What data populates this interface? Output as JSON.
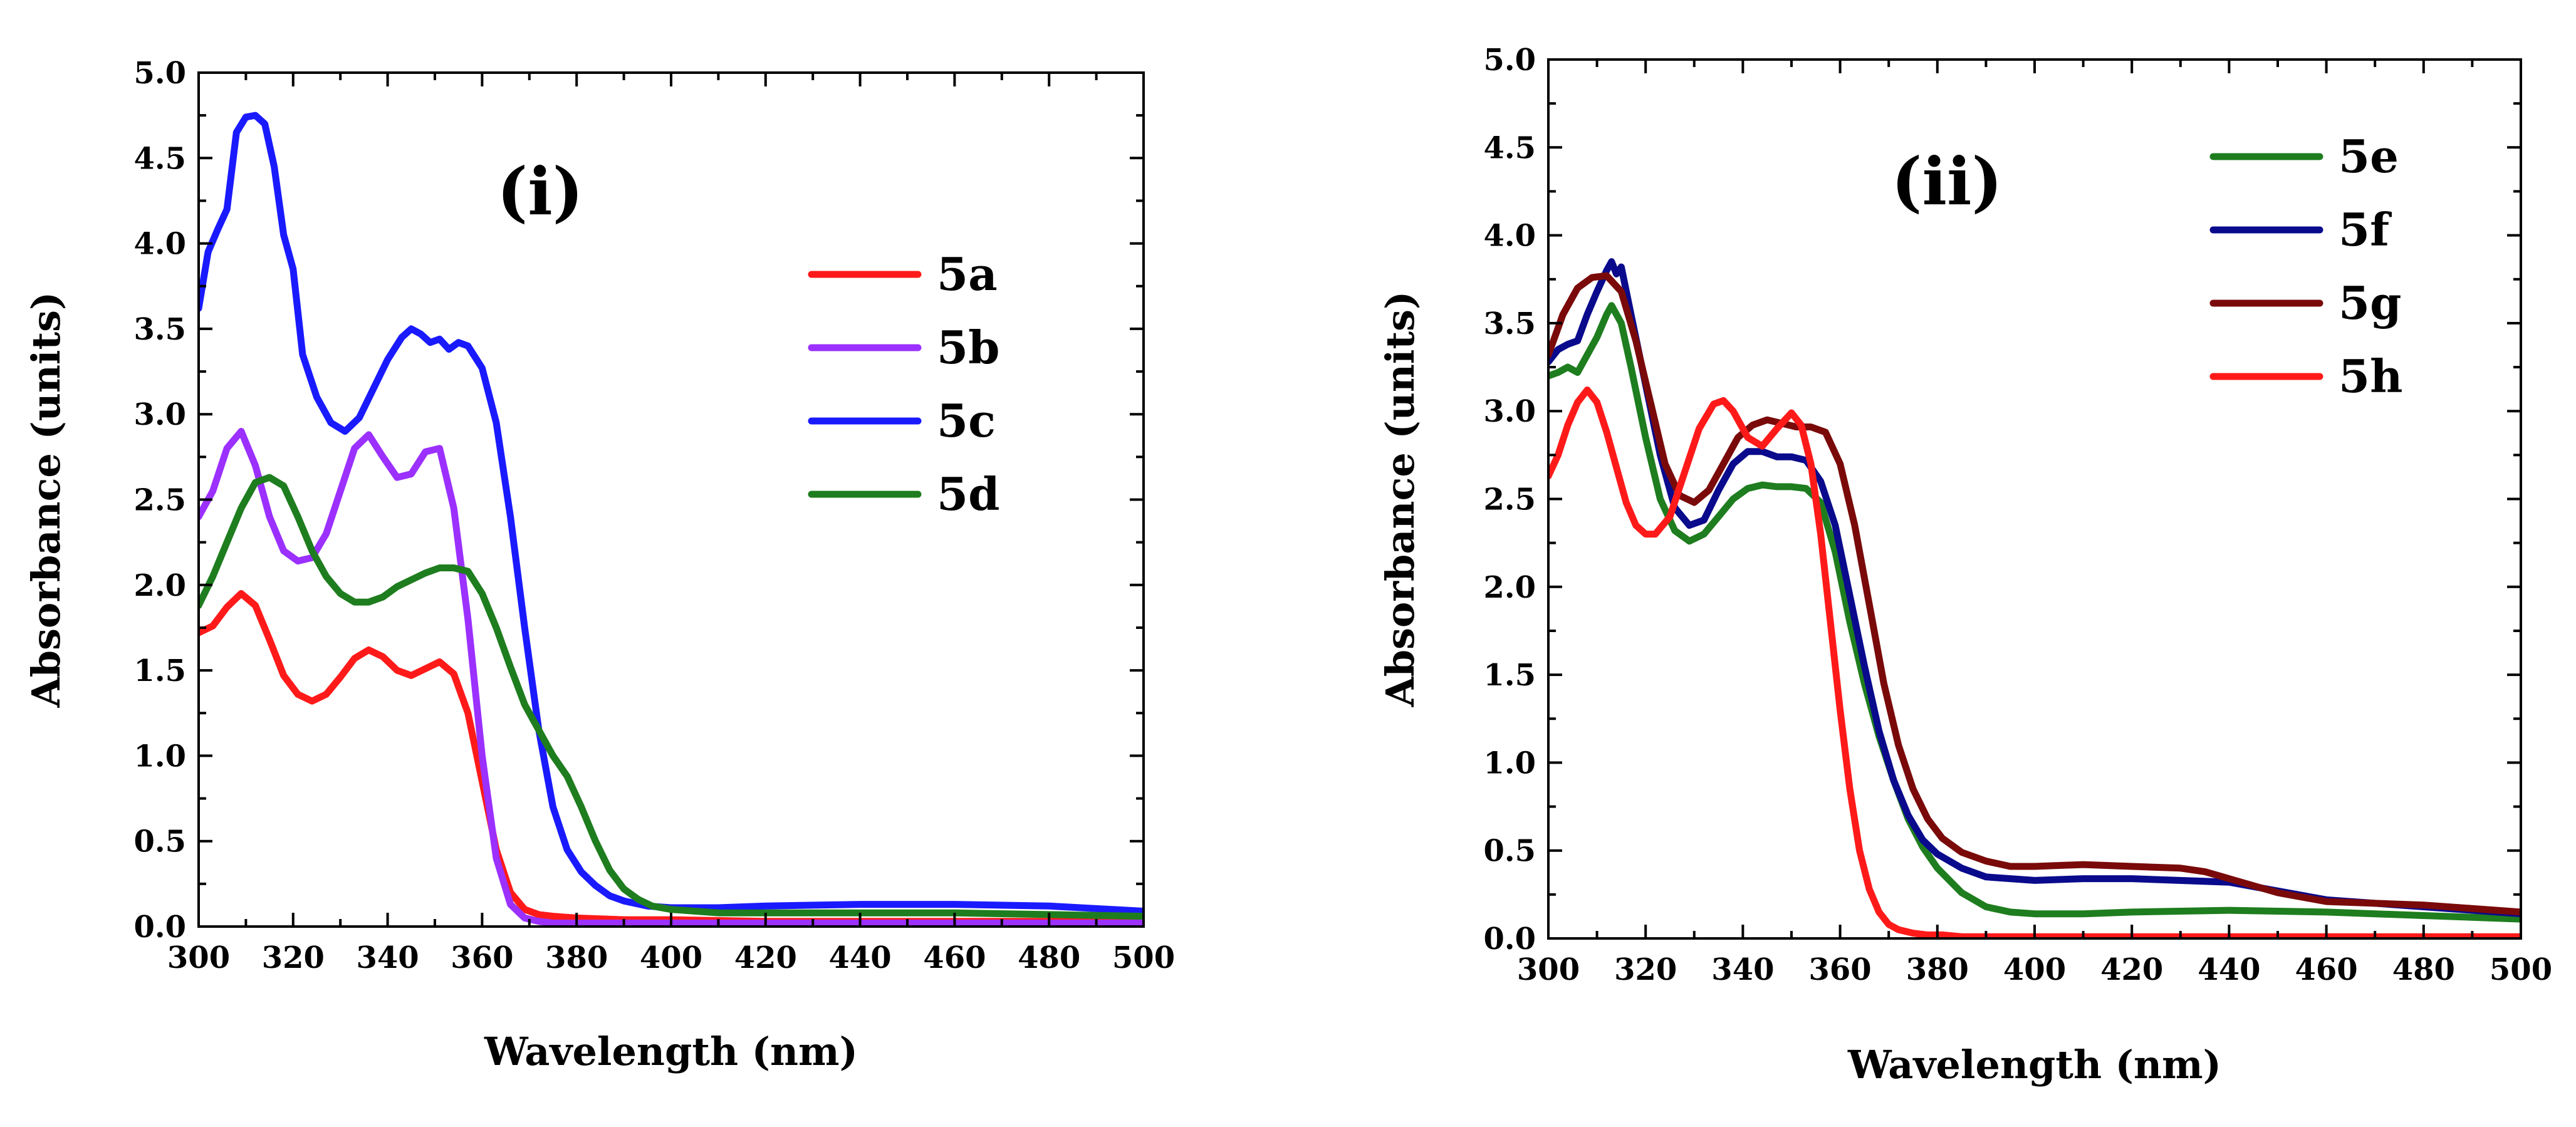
{
  "chart_data": [
    {
      "type": "line",
      "panel_label": "(i)",
      "xlabel": "Wavelength (nm)",
      "ylabel": "Absorbance (units)",
      "xlim": [
        300,
        500
      ],
      "ylim": [
        0.0,
        5.0
      ],
      "xticks": [
        "300",
        "320",
        "340",
        "360",
        "380",
        "400",
        "420",
        "440",
        "460",
        "480",
        "500"
      ],
      "yticks": [
        "0.0",
        "0.5",
        "1.0",
        "1.5",
        "2.0",
        "2.5",
        "3.0",
        "3.5",
        "4.0",
        "4.5",
        "5.0"
      ],
      "legend_position": "top-right",
      "series": [
        {
          "name": "5a",
          "color": "#ff1a1a",
          "x": [
            300,
            303,
            306,
            309,
            312,
            315,
            318,
            321,
            324,
            327,
            330,
            333,
            336,
            339,
            342,
            345,
            348,
            351,
            354,
            357,
            360,
            363,
            366,
            369,
            372,
            375,
            380,
            390,
            400,
            420,
            440,
            460,
            480,
            500
          ],
          "y": [
            1.72,
            1.76,
            1.87,
            1.95,
            1.88,
            1.68,
            1.47,
            1.36,
            1.32,
            1.36,
            1.46,
            1.57,
            1.62,
            1.58,
            1.5,
            1.47,
            1.51,
            1.55,
            1.48,
            1.25,
            0.85,
            0.45,
            0.2,
            0.1,
            0.07,
            0.06,
            0.05,
            0.04,
            0.04,
            0.03,
            0.03,
            0.03,
            0.03,
            0.03
          ]
        },
        {
          "name": "5b",
          "color": "#9b30ff",
          "x": [
            300,
            303,
            306,
            309,
            312,
            315,
            318,
            321,
            324,
            327,
            330,
            333,
            336,
            339,
            342,
            345,
            348,
            351,
            354,
            357,
            360,
            363,
            366,
            369,
            372,
            375,
            380,
            390,
            400,
            420,
            440,
            460,
            480,
            500
          ],
          "y": [
            2.4,
            2.55,
            2.8,
            2.9,
            2.7,
            2.4,
            2.2,
            2.14,
            2.16,
            2.3,
            2.55,
            2.8,
            2.88,
            2.75,
            2.63,
            2.65,
            2.78,
            2.8,
            2.45,
            1.8,
            1.0,
            0.4,
            0.13,
            0.05,
            0.03,
            0.02,
            0.02,
            0.02,
            0.02,
            0.02,
            0.02,
            0.02,
            0.02,
            0.02
          ]
        },
        {
          "name": "5c",
          "color": "#1a1aff",
          "x": [
            300,
            302,
            304,
            306,
            308,
            310,
            312,
            314,
            316,
            318,
            320,
            322,
            325,
            328,
            331,
            334,
            337,
            340,
            343,
            345,
            347,
            349,
            351,
            353,
            355,
            357,
            360,
            363,
            366,
            369,
            372,
            375,
            378,
            381,
            384,
            387,
            390,
            395,
            400,
            410,
            420,
            440,
            460,
            480,
            500
          ],
          "y": [
            3.62,
            3.95,
            4.08,
            4.2,
            4.65,
            4.74,
            4.75,
            4.7,
            4.45,
            4.05,
            3.85,
            3.35,
            3.1,
            2.95,
            2.9,
            2.98,
            3.15,
            3.32,
            3.45,
            3.5,
            3.47,
            3.42,
            3.44,
            3.38,
            3.42,
            3.4,
            3.27,
            2.95,
            2.4,
            1.75,
            1.15,
            0.7,
            0.45,
            0.32,
            0.24,
            0.18,
            0.15,
            0.12,
            0.11,
            0.11,
            0.12,
            0.13,
            0.13,
            0.12,
            0.09
          ]
        },
        {
          "name": "5d",
          "color": "#1e7d1e",
          "x": [
            300,
            303,
            306,
            309,
            312,
            315,
            318,
            321,
            324,
            327,
            330,
            333,
            336,
            339,
            342,
            345,
            348,
            351,
            354,
            357,
            360,
            363,
            366,
            369,
            372,
            375,
            378,
            381,
            384,
            387,
            390,
            393,
            396,
            400,
            410,
            420,
            440,
            460,
            480,
            500
          ],
          "y": [
            1.88,
            2.05,
            2.25,
            2.45,
            2.6,
            2.63,
            2.58,
            2.4,
            2.2,
            2.05,
            1.95,
            1.9,
            1.9,
            1.93,
            1.99,
            2.03,
            2.07,
            2.1,
            2.1,
            2.08,
            1.95,
            1.75,
            1.52,
            1.3,
            1.15,
            1.0,
            0.88,
            0.7,
            0.5,
            0.33,
            0.22,
            0.16,
            0.12,
            0.1,
            0.08,
            0.08,
            0.08,
            0.08,
            0.07,
            0.06
          ]
        }
      ]
    },
    {
      "type": "line",
      "panel_label": "(ii)",
      "xlabel": "Wavelength (nm)",
      "ylabel": "Absorbance (units)",
      "xlim": [
        300,
        500
      ],
      "ylim": [
        0.0,
        5.0
      ],
      "xticks": [
        "300",
        "320",
        "340",
        "360",
        "380",
        "400",
        "420",
        "440",
        "460",
        "480",
        "500"
      ],
      "yticks": [
        "0.0",
        "0.5",
        "1.0",
        "1.5",
        "2.0",
        "2.5",
        "3.0",
        "3.5",
        "4.0",
        "4.5",
        "5.0"
      ],
      "legend_position": "top-right",
      "series": [
        {
          "name": "5e",
          "color": "#1e7d1e",
          "x": [
            300,
            302,
            304,
            306,
            308,
            310,
            312,
            313,
            315,
            317,
            320,
            323,
            326,
            329,
            332,
            335,
            338,
            341,
            344,
            347,
            350,
            353,
            356,
            359,
            362,
            365,
            368,
            371,
            374,
            377,
            380,
            385,
            390,
            395,
            400,
            410,
            420,
            440,
            460,
            480,
            500
          ],
          "y": [
            3.2,
            3.22,
            3.25,
            3.22,
            3.32,
            3.42,
            3.55,
            3.6,
            3.5,
            3.25,
            2.85,
            2.5,
            2.32,
            2.26,
            2.3,
            2.4,
            2.5,
            2.56,
            2.58,
            2.57,
            2.57,
            2.56,
            2.48,
            2.2,
            1.8,
            1.45,
            1.15,
            0.9,
            0.68,
            0.52,
            0.4,
            0.26,
            0.18,
            0.15,
            0.14,
            0.14,
            0.15,
            0.16,
            0.15,
            0.13,
            0.11
          ]
        },
        {
          "name": "5f",
          "color": "#0a0a8c",
          "x": [
            300,
            302,
            304,
            306,
            308,
            310,
            312,
            313,
            314,
            315,
            317,
            320,
            323,
            326,
            329,
            332,
            335,
            338,
            341,
            344,
            347,
            350,
            353,
            356,
            359,
            362,
            365,
            368,
            371,
            374,
            377,
            380,
            385,
            390,
            400,
            410,
            420,
            440,
            460,
            480,
            500
          ],
          "y": [
            3.28,
            3.35,
            3.38,
            3.4,
            3.55,
            3.68,
            3.8,
            3.85,
            3.78,
            3.82,
            3.55,
            3.15,
            2.75,
            2.45,
            2.35,
            2.38,
            2.55,
            2.7,
            2.77,
            2.77,
            2.74,
            2.74,
            2.72,
            2.6,
            2.35,
            1.95,
            1.55,
            1.18,
            0.9,
            0.7,
            0.56,
            0.48,
            0.4,
            0.35,
            0.33,
            0.34,
            0.34,
            0.32,
            0.22,
            0.18,
            0.14
          ]
        },
        {
          "name": "5g",
          "color": "#7a0a0a",
          "x": [
            300,
            303,
            306,
            309,
            312,
            315,
            318,
            321,
            324,
            327,
            330,
            333,
            336,
            339,
            342,
            345,
            348,
            351,
            354,
            357,
            360,
            363,
            366,
            369,
            372,
            375,
            378,
            381,
            385,
            390,
            395,
            400,
            410,
            420,
            430,
            435,
            440,
            450,
            460,
            480,
            500
          ],
          "y": [
            3.32,
            3.55,
            3.7,
            3.76,
            3.77,
            3.68,
            3.4,
            3.05,
            2.7,
            2.52,
            2.48,
            2.55,
            2.7,
            2.85,
            2.92,
            2.95,
            2.93,
            2.91,
            2.91,
            2.88,
            2.7,
            2.35,
            1.9,
            1.45,
            1.1,
            0.85,
            0.68,
            0.57,
            0.49,
            0.44,
            0.41,
            0.41,
            0.42,
            0.41,
            0.4,
            0.38,
            0.34,
            0.26,
            0.21,
            0.19,
            0.15
          ]
        },
        {
          "name": "5h",
          "color": "#ff1a1a",
          "x": [
            300,
            302,
            304,
            306,
            308,
            310,
            312,
            314,
            316,
            318,
            320,
            322,
            325,
            328,
            331,
            334,
            336,
            338,
            341,
            344,
            347,
            350,
            352,
            354,
            356,
            358,
            360,
            362,
            364,
            366,
            368,
            370,
            372,
            375,
            378,
            381,
            385,
            390,
            400,
            420,
            450,
            500
          ],
          "y": [
            2.63,
            2.75,
            2.92,
            3.05,
            3.12,
            3.05,
            2.88,
            2.68,
            2.48,
            2.35,
            2.3,
            2.3,
            2.4,
            2.65,
            2.9,
            3.04,
            3.06,
            3.0,
            2.85,
            2.8,
            2.9,
            2.99,
            2.92,
            2.7,
            2.3,
            1.8,
            1.3,
            0.85,
            0.5,
            0.28,
            0.15,
            0.08,
            0.05,
            0.03,
            0.02,
            0.02,
            0.01,
            0.01,
            0.01,
            0.01,
            0.01,
            0.01
          ]
        }
      ]
    }
  ]
}
